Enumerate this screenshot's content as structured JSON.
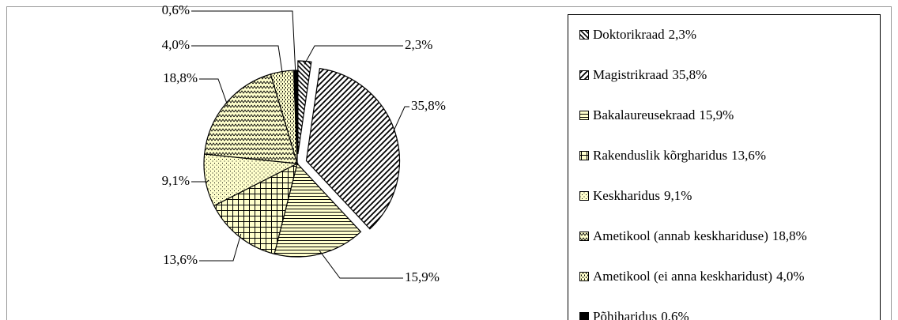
{
  "chart_data": {
    "type": "pie",
    "categories": [
      "Doktorikraad",
      "Magistrikraad",
      "Bakalaureusekraad",
      "Rakenduslik kõrgharidus",
      "Keskharidus",
      "Ametikool (annab keskhariduse)",
      "Ametikool (ei anna keskharidust)",
      "Põhiharidus"
    ],
    "values": [
      2.3,
      35.8,
      15.9,
      13.6,
      9.1,
      18.8,
      4.0,
      0.6
    ],
    "value_labels": [
      "2,3%",
      "35,8%",
      "15,9%",
      "13,6%",
      "9,1%",
      "18,8%",
      "4,0%",
      "0,6%"
    ],
    "colors": [
      "#ffffff",
      "#ffffff",
      "#ffffcc",
      "#ffffcc",
      "#ffffcc",
      "#ffffcc",
      "#ffffcc",
      "#000000"
    ],
    "legend": "right"
  }
}
